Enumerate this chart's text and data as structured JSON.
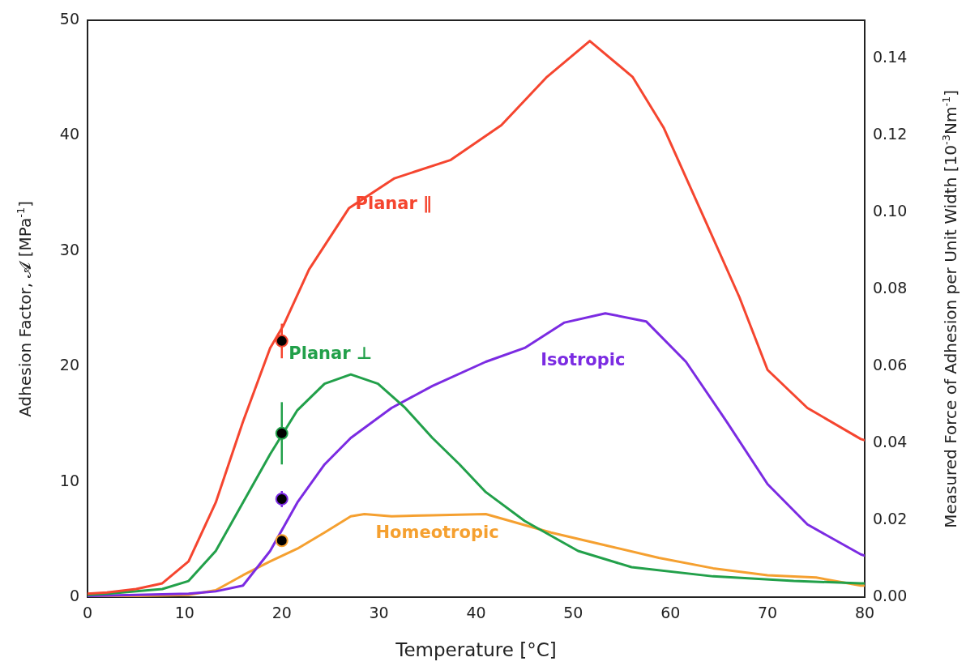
{
  "chart_data": {
    "type": "line",
    "xlabel": "Temperature [°C]",
    "ylabel": "Adhesion Factor, 𝓐 [MPa$^{-1}$]",
    "y2label": "Measured Force of Adhesion per Unit Width [10$^{-3}$Nm$^{-1}$]",
    "xlim": [
      0,
      80
    ],
    "xticks": [
      0,
      10,
      20,
      30,
      40,
      50,
      60,
      70,
      80
    ],
    "ylim": [
      0,
      50
    ],
    "yticks": [
      0,
      10,
      20,
      30,
      40,
      50
    ],
    "y2lim": [
      0,
      0.15
    ],
    "y2ticks": [
      {
        "value": 0,
        "label": "0.00"
      },
      {
        "value": 0.02,
        "label": "0.02"
      },
      {
        "value": 0.04,
        "label": "0.04"
      },
      {
        "value": 0.06,
        "label": "0.06"
      },
      {
        "value": 0.08,
        "label": "0.08"
      },
      {
        "value": 0.1,
        "label": "0.10"
      },
      {
        "value": 0.12,
        "label": "0.12"
      },
      {
        "value": 0.14,
        "label": "0.14"
      }
    ],
    "grid": false,
    "legend": false,
    "marker": "none",
    "line_style": "solid",
    "series": [
      {
        "name": "Planar ∥",
        "color": "#f5452f",
        "x": [
          0,
          2,
          5,
          7.7,
          10.4,
          13.2,
          16,
          18.8,
          20.2,
          22.8,
          26.9,
          31.6,
          37.4,
          42.6,
          47.3,
          51.7,
          56.1,
          59.3,
          63.5,
          67.1,
          70,
          74.1,
          79.6,
          80
        ],
        "values": [
          0.3,
          0.4,
          0.7,
          1.2,
          3.1,
          8.2,
          15.2,
          21.6,
          23.6,
          28.4,
          33.7,
          36.3,
          37.9,
          40.9,
          45.1,
          48.2,
          45.1,
          40.7,
          32.8,
          26,
          19.7,
          16.4,
          13.7,
          13.6
        ]
      },
      {
        "name": "Planar ⊥",
        "color": "#22a04a",
        "x": [
          0,
          2.1,
          7.7,
          10.4,
          13.2,
          16,
          18.8,
          21.6,
          24.4,
          27.1,
          29.9,
          32.7,
          35.5,
          38.3,
          41,
          45,
          50.5,
          56,
          64.4,
          72.7,
          79.6,
          80
        ],
        "values": [
          0.2,
          0.3,
          0.7,
          1.4,
          4,
          8.2,
          12.4,
          16.2,
          18.5,
          19.3,
          18.5,
          16.4,
          13.8,
          11.5,
          9.1,
          6.6,
          4,
          2.6,
          1.8,
          1.4,
          1.2,
          1.2
        ]
      },
      {
        "name": "Isotropic",
        "color": "#7b2be2",
        "x": [
          0,
          5,
          10.4,
          13.2,
          16,
          18.8,
          21.6,
          24.4,
          27.1,
          31.3,
          35.5,
          41,
          45,
          49.1,
          53.3,
          57.5,
          61.6,
          65.8,
          70,
          74.1,
          79.6,
          80
        ],
        "values": [
          0.1,
          0.2,
          0.3,
          0.5,
          1,
          4,
          8.2,
          11.5,
          13.8,
          16.4,
          18.3,
          20.4,
          21.6,
          23.8,
          24.6,
          23.9,
          20.4,
          15.2,
          9.8,
          6.3,
          3.7,
          3.6
        ]
      },
      {
        "name": "Homeotropic",
        "color": "#f5a030",
        "x": [
          0,
          5,
          10.4,
          13.2,
          16,
          18.8,
          21.6,
          24.4,
          27.1,
          28.5,
          31.3,
          35.5,
          41,
          47.7,
          53.3,
          58.8,
          64.4,
          70,
          75,
          79.6,
          80
        ],
        "values": [
          0.1,
          0.1,
          0.2,
          0.6,
          1.9,
          3.1,
          4.2,
          5.6,
          7,
          7.2,
          7,
          7.1,
          7.2,
          5.6,
          4.5,
          3.4,
          2.5,
          1.9,
          1.7,
          1,
          1
        ]
      },
      {
        "type": "scatter",
        "marker": "circle",
        "color": "#f5452f",
        "x": [
          20
        ],
        "values": [
          22.2
        ],
        "errors": [
          1.5
        ]
      },
      {
        "type": "scatter",
        "marker": "circle",
        "color": "#22a04a",
        "x": [
          20
        ],
        "values": [
          14.2
        ],
        "errors": [
          2.7
        ]
      },
      {
        "type": "scatter",
        "marker": "circle",
        "color": "#7b2be2",
        "x": [
          20
        ],
        "values": [
          8.5
        ],
        "errors": [
          0.7
        ]
      },
      {
        "type": "scatter",
        "marker": "circle",
        "color": "#f5a030",
        "x": [
          20
        ],
        "values": [
          4.9
        ]
      }
    ]
  }
}
